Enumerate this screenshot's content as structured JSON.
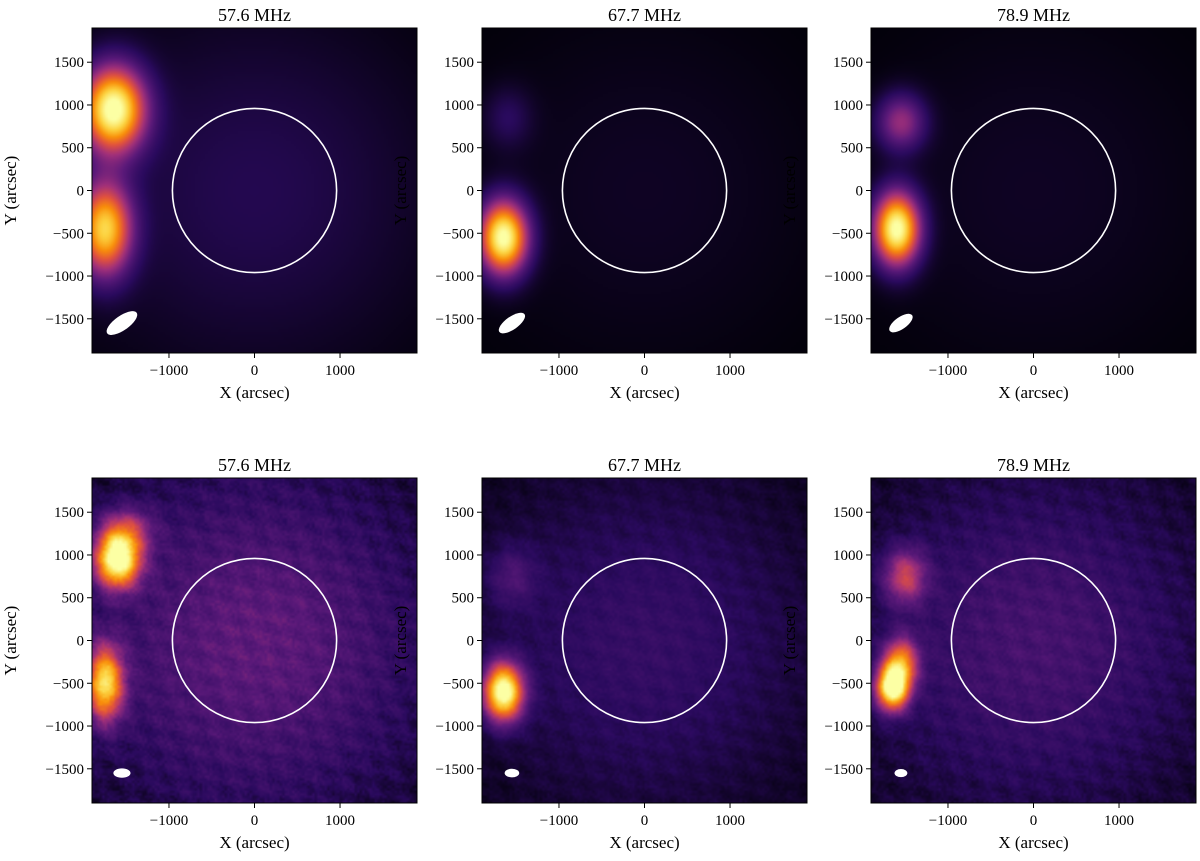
{
  "figure": {
    "panels_layout": {
      "rows": 2,
      "cols": 3
    },
    "colors": {
      "background": "#0a0418",
      "limb_circle": "#ffffff",
      "beam": "#ffffff",
      "colormap": [
        "#000004",
        "#2a0a5e",
        "#5c1a7a",
        "#a1307a",
        "#e0503f",
        "#f98e09",
        "#fcd23f",
        "#fcffa4"
      ]
    }
  },
  "chart_data": [
    {
      "type": "heatmap",
      "title": "57.6 MHz",
      "xlabel": "X (arcsec)",
      "ylabel": "Y (arcsec)",
      "xlim": [
        -1900,
        1900
      ],
      "ylim": [
        -1900,
        1900
      ],
      "xticks": [
        -1000,
        0,
        1000
      ],
      "xtick_labels": [
        "−1000",
        "0",
        "1000"
      ],
      "yticks": [
        1500,
        1000,
        500,
        0,
        -500,
        -1000,
        -1500
      ],
      "ytick_labels": [
        "1500",
        "1000",
        "500",
        "0",
        "−500",
        "−1000",
        "−1500"
      ],
      "solar_limb_radius": 960,
      "beam": {
        "x": -1550,
        "y": -1550,
        "major": 420,
        "minor": 170,
        "angle_deg": 35
      },
      "sources": [
        {
          "x": -1650,
          "y": 950,
          "sigma_x": 260,
          "sigma_y": 350,
          "peak": 1.0
        },
        {
          "x": -1750,
          "y": -450,
          "sigma_x": 220,
          "sigma_y": 380,
          "peak": 0.82
        }
      ],
      "background_level": 0.12,
      "noise": 0.0
    },
    {
      "type": "heatmap",
      "title": "67.7 MHz",
      "xlabel": "X (arcsec)",
      "ylabel": "Y (arcsec)",
      "xlim": [
        -1900,
        1900
      ],
      "ylim": [
        -1900,
        1900
      ],
      "xticks": [
        -1000,
        0,
        1000
      ],
      "xtick_labels": [
        "−1000",
        "0",
        "1000"
      ],
      "yticks": [
        1500,
        1000,
        500,
        0,
        -500,
        -1000,
        -1500
      ],
      "ytick_labels": [
        "1500",
        "1000",
        "500",
        "0",
        "−500",
        "−1000",
        "−1500"
      ],
      "solar_limb_radius": 960,
      "beam": {
        "x": -1550,
        "y": -1550,
        "major": 360,
        "minor": 150,
        "angle_deg": 35
      },
      "sources": [
        {
          "x": -1650,
          "y": -550,
          "sigma_x": 200,
          "sigma_y": 300,
          "peak": 1.0
        },
        {
          "x": -1600,
          "y": 850,
          "sigma_x": 200,
          "sigma_y": 250,
          "peak": 0.12
        }
      ],
      "background_level": 0.05,
      "noise": 0.0
    },
    {
      "type": "heatmap",
      "title": "78.9 MHz",
      "xlabel": "X (arcsec)",
      "ylabel": "Y (arcsec)",
      "xlim": [
        -1900,
        1900
      ],
      "ylim": [
        -1900,
        1900
      ],
      "xticks": [
        -1000,
        0,
        1000
      ],
      "xtick_labels": [
        "−1000",
        "0",
        "1000"
      ],
      "yticks": [
        1500,
        1000,
        500,
        0,
        -500,
        -1000,
        -1500
      ],
      "ytick_labels": [
        "1500",
        "1000",
        "500",
        "0",
        "−500",
        "−1000",
        "−1500"
      ],
      "solar_limb_radius": 960,
      "beam": {
        "x": -1550,
        "y": -1550,
        "major": 320,
        "minor": 140,
        "angle_deg": 35
      },
      "sources": [
        {
          "x": -1600,
          "y": -450,
          "sigma_x": 190,
          "sigma_y": 300,
          "peak": 1.0
        },
        {
          "x": -1550,
          "y": 800,
          "sigma_x": 200,
          "sigma_y": 230,
          "peak": 0.38
        }
      ],
      "background_level": 0.05,
      "noise": 0.0
    },
    {
      "type": "heatmap",
      "title": "57.6 MHz",
      "xlabel": "X (arcsec)",
      "ylabel": "Y (arcsec)",
      "xlim": [
        -1900,
        1900
      ],
      "ylim": [
        -1900,
        1900
      ],
      "xticks": [
        -1000,
        0,
        1000
      ],
      "xtick_labels": [
        "−1000",
        "0",
        "1000"
      ],
      "yticks": [
        1500,
        1000,
        500,
        0,
        -500,
        -1000,
        -1500
      ],
      "ytick_labels": [
        "1500",
        "1000",
        "500",
        "0",
        "−500",
        "−1000",
        "−1500"
      ],
      "solar_limb_radius": 960,
      "beam": {
        "x": -1550,
        "y": -1550,
        "major": 200,
        "minor": 110,
        "angle_deg": 0
      },
      "sources": [
        {
          "x": -1600,
          "y": 950,
          "sigma_x": 180,
          "sigma_y": 220,
          "peak": 1.0
        },
        {
          "x": -1750,
          "y": -500,
          "sigma_x": 150,
          "sigma_y": 300,
          "peak": 0.78
        },
        {
          "x": -1500,
          "y": 1300,
          "sigma_x": 220,
          "sigma_y": 180,
          "peak": 0.3
        }
      ],
      "background_level": 0.26,
      "noise": 0.09
    },
    {
      "type": "heatmap",
      "title": "67.7 MHz",
      "xlabel": "X (arcsec)",
      "ylabel": "Y (arcsec)",
      "xlim": [
        -1900,
        1900
      ],
      "ylim": [
        -1900,
        1900
      ],
      "xticks": [
        -1000,
        0,
        1000
      ],
      "xtick_labels": [
        "−1000",
        "0",
        "1000"
      ],
      "yticks": [
        1500,
        1000,
        500,
        0,
        -500,
        -1000,
        -1500
      ],
      "ytick_labels": [
        "1500",
        "1000",
        "500",
        "0",
        "−500",
        "−1000",
        "−1500"
      ],
      "solar_limb_radius": 960,
      "beam": {
        "x": -1550,
        "y": -1550,
        "major": 170,
        "minor": 100,
        "angle_deg": 0
      },
      "sources": [
        {
          "x": -1650,
          "y": -600,
          "sigma_x": 160,
          "sigma_y": 230,
          "peak": 1.0
        },
        {
          "x": -1550,
          "y": 750,
          "sigma_x": 200,
          "sigma_y": 250,
          "peak": 0.14
        }
      ],
      "background_level": 0.16,
      "noise": 0.05
    },
    {
      "type": "heatmap",
      "title": "78.9 MHz",
      "xlabel": "X (arcsec)",
      "ylabel": "Y (arcsec)",
      "xlim": [
        -1900,
        1900
      ],
      "ylim": [
        -1900,
        1900
      ],
      "xticks": [
        -1000,
        0,
        1000
      ],
      "xtick_labels": [
        "−1000",
        "0",
        "1000"
      ],
      "yticks": [
        1500,
        1000,
        500,
        0,
        -500,
        -1000,
        -1500
      ],
      "ytick_labels": [
        "1500",
        "1000",
        "500",
        "0",
        "−500",
        "−1000",
        "−1500"
      ],
      "solar_limb_radius": 960,
      "beam": {
        "x": -1550,
        "y": -1550,
        "major": 150,
        "minor": 95,
        "angle_deg": 0
      },
      "sources": [
        {
          "x": -1650,
          "y": -550,
          "sigma_x": 130,
          "sigma_y": 180,
          "peak": 1.0
        },
        {
          "x": -1550,
          "y": -250,
          "sigma_x": 140,
          "sigma_y": 200,
          "peak": 0.55
        },
        {
          "x": -1500,
          "y": 750,
          "sigma_x": 170,
          "sigma_y": 220,
          "peak": 0.4
        }
      ],
      "background_level": 0.2,
      "noise": 0.07
    }
  ]
}
